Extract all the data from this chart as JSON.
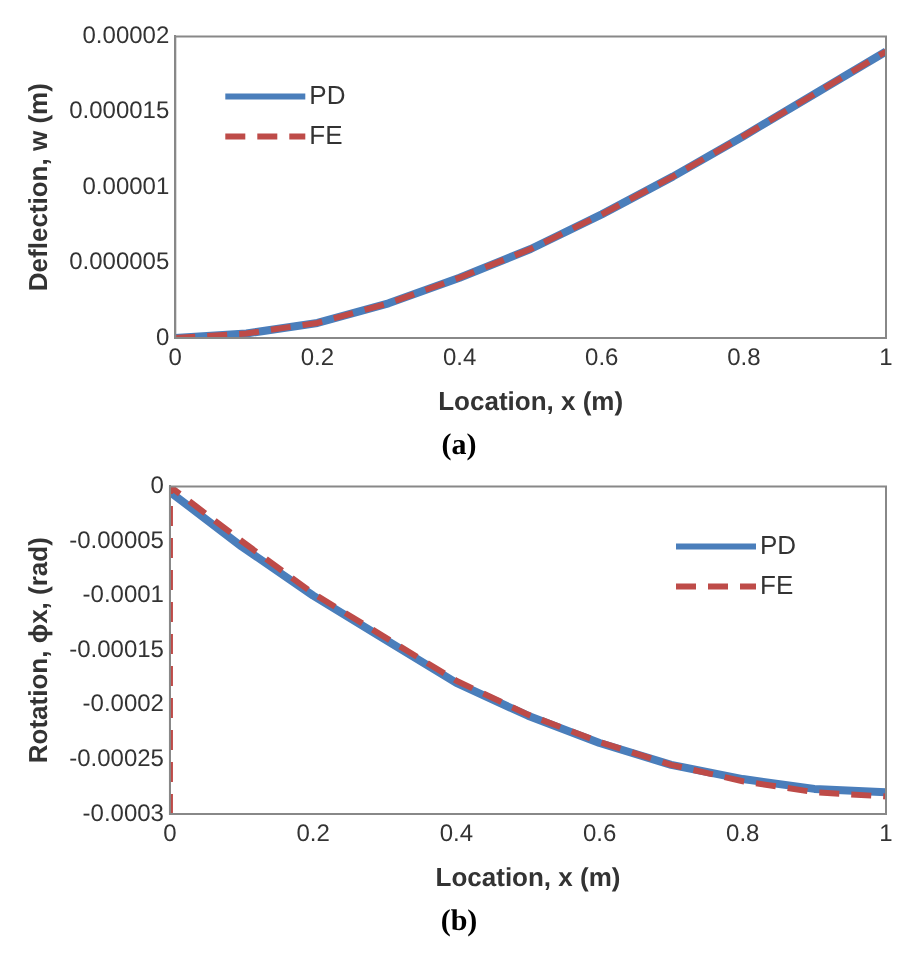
{
  "chart_data": [
    {
      "type": "line",
      "xlabel": "Location, x (m)",
      "ylabel": "Deflection, w (m)",
      "annotations": [
        "(a)"
      ],
      "x": [
        0,
        0.1,
        0.2,
        0.3,
        0.4,
        0.5,
        0.6,
        0.7,
        0.8,
        0.9,
        1
      ],
      "series": [
        {
          "name": "PD",
          "color": "#4a7ebb",
          "line_style": "solid",
          "values": [
            0,
            3e-07,
            1e-06,
            2.3e-06,
            4e-06,
            5.9e-06,
            8.2e-06,
            1.07e-05,
            1.34e-05,
            1.62e-05,
            1.9e-05
          ]
        },
        {
          "name": "FE",
          "color": "#be4b48",
          "line_style": "dashed",
          "values": [
            0,
            3e-07,
            1e-06,
            2.3e-06,
            4e-06,
            5.9e-06,
            8.2e-06,
            1.07e-05,
            1.34e-05,
            1.62e-05,
            1.9e-05
          ]
        }
      ],
      "xlim": [
        0,
        1
      ],
      "xticks": [
        0,
        0.2,
        0.4,
        0.6,
        0.8,
        1
      ],
      "ylim": [
        0,
        2e-05
      ],
      "yticks": [
        0,
        {
          "value": 5e-06,
          "label": "0.000005"
        },
        {
          "value": 1e-05,
          "label": "0.00001"
        },
        {
          "value": 1.5e-05,
          "label": "0.000015"
        },
        {
          "value": 2e-05,
          "label": "0.00002"
        }
      ],
      "grid": false,
      "legend": "top left",
      "marker": "none"
    },
    {
      "type": "line",
      "xlabel": "Location, x (m)",
      "ylabel": "Rotation, ϕx, (rad)",
      "annotations": [
        "(b)"
      ],
      "x": [
        0,
        0.1,
        0.2,
        0.3,
        0.4,
        0.5,
        0.6,
        0.7,
        0.8,
        0.9,
        1
      ],
      "series": [
        {
          "name": "PD",
          "color": "#4a7ebb",
          "line_style": "solid",
          "values": [
            -5e-06,
            -5.5e-05,
            -0.0001,
            -0.00014,
            -0.00018,
            -0.00021,
            -0.000235,
            -0.000255,
            -0.000268,
            -0.000277,
            -0.00028
          ]
        },
        {
          "name": "FE",
          "color": "#be4b48",
          "line_style": "dashed",
          "x": [
            0,
            0,
            0.1,
            0.2,
            0.3,
            0.4,
            0.5,
            0.6,
            0.7,
            0.8,
            0.9,
            1
          ],
          "values": [
            -0.0003,
            0,
            -5e-05,
            -9.8e-05,
            -0.000138,
            -0.000178,
            -0.000209,
            -0.000234,
            -0.000255,
            -0.00027,
            -0.00028,
            -0.000284
          ]
        }
      ],
      "xlim": [
        0,
        1
      ],
      "xticks": [
        0,
        0.2,
        0.4,
        0.6,
        0.8,
        1
      ],
      "ylim": [
        -0.0003,
        0
      ],
      "yticks": [
        -0.0003,
        -0.00025,
        -0.0002,
        -0.00015,
        -0.0001,
        {
          "value": -5e-05,
          "label": "-0.00005"
        },
        0
      ],
      "grid": false,
      "legend": "top right",
      "marker": "none"
    }
  ]
}
